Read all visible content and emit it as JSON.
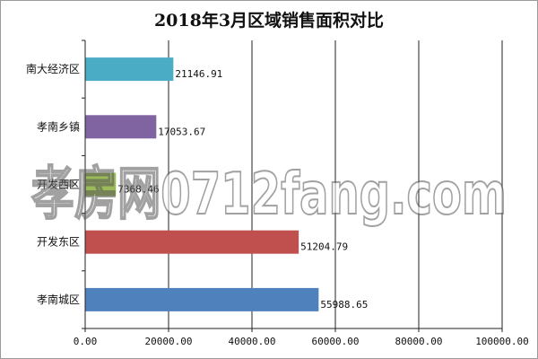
{
  "chart_data": {
    "type": "bar",
    "orientation": "horizontal",
    "title": "2018年3月区域销售面积对比",
    "categories": [
      "南大经济区",
      "孝南乡镇",
      "开发西区",
      "开发东区",
      "孝南城区"
    ],
    "values": [
      21146.91,
      17053.67,
      7368.46,
      51204.79,
      55988.65
    ],
    "value_labels": [
      "21146.91",
      "17053.67",
      "7368.46",
      "51204.79",
      "55988.65"
    ],
    "colors": [
      "#4bacc6",
      "#8064a2",
      "#9bbb59",
      "#c0504d",
      "#4f81bd"
    ],
    "xlim": [
      0,
      100000
    ],
    "xticks": [
      0,
      20000,
      40000,
      60000,
      80000,
      100000
    ],
    "xtick_labels": [
      "0.00",
      "20000.00",
      "40000.00",
      "60000.00",
      "80000.00",
      "100000.00"
    ],
    "grid": true,
    "legend": "none"
  },
  "watermark": {
    "text": "孝房网0712fang.com"
  }
}
